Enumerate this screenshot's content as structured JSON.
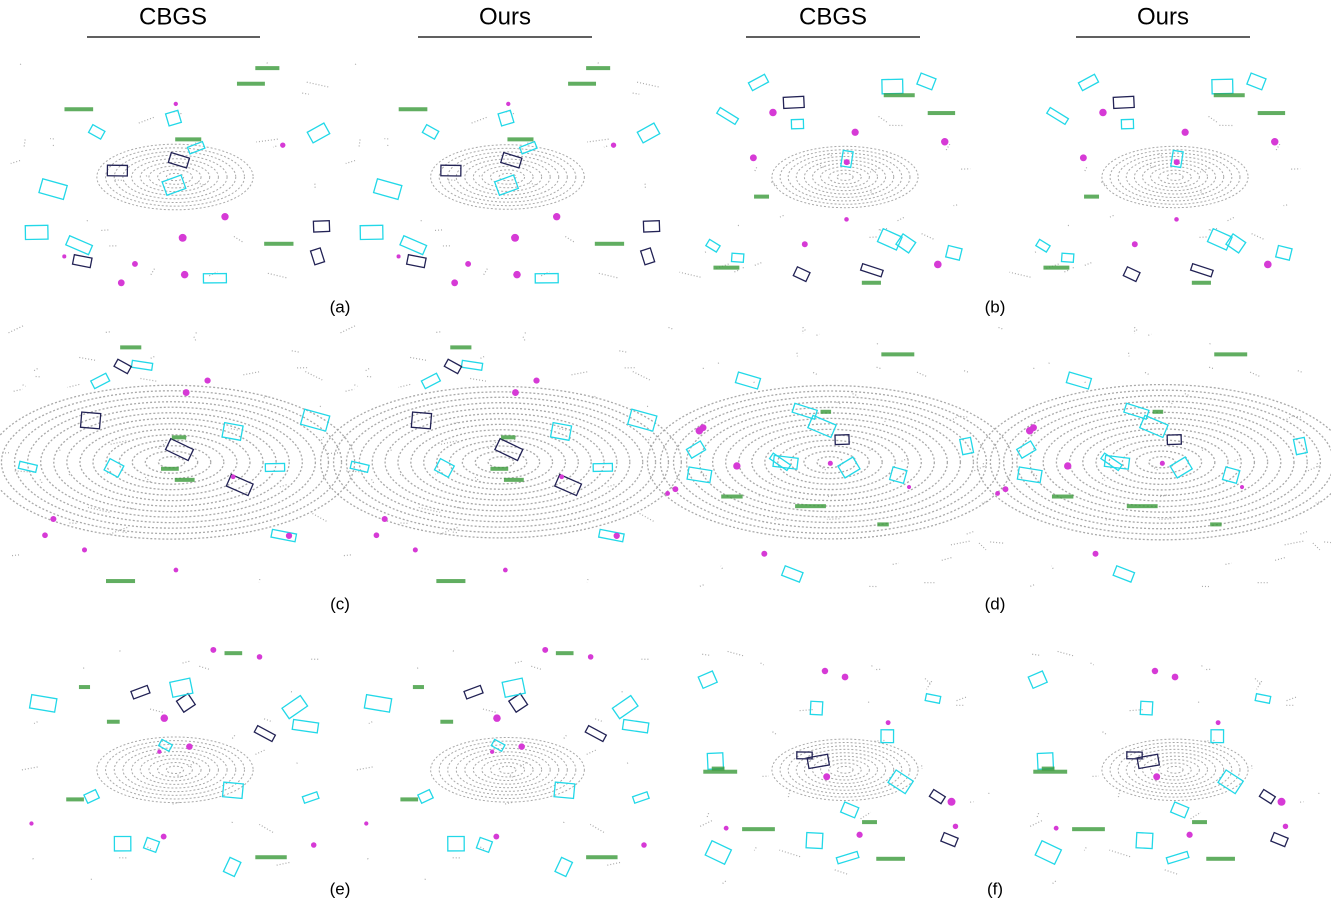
{
  "headers": [
    "CBGS",
    "Ours",
    "CBGS",
    "Ours"
  ],
  "panels": [
    "(a)",
    "(b)",
    "(c)",
    "(d)",
    "(e)",
    "(f)"
  ]
}
